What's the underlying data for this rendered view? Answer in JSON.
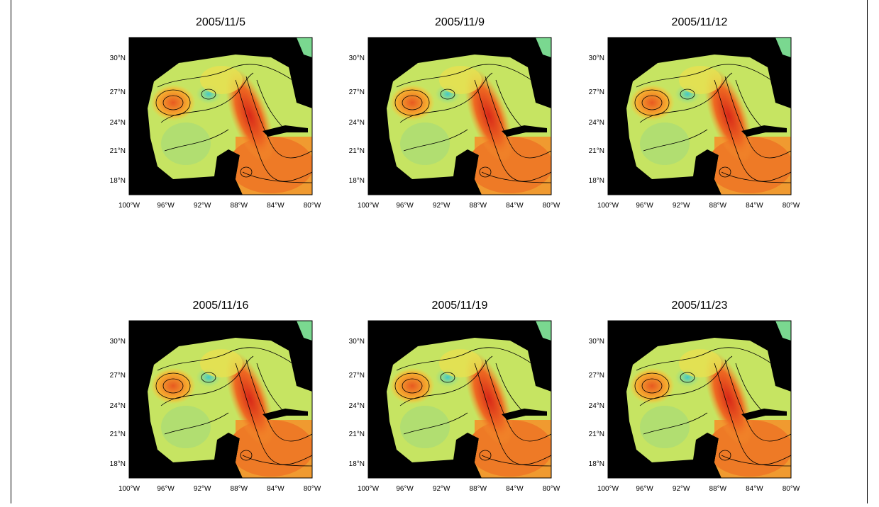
{
  "panels": [
    {
      "title": "2005/11/5",
      "yticks": [
        "30°N",
        "27°N",
        "24°N",
        "21°N",
        "18°N"
      ],
      "xticks": [
        "100°W",
        "96°W",
        "92°W",
        "88°W",
        "84°W",
        "80°W"
      ]
    },
    {
      "title": "2005/11/9",
      "yticks": [
        "30°N",
        "27°N",
        "24°N",
        "21°N",
        "18°N"
      ],
      "xticks": [
        "100°W",
        "96°W",
        "92°W",
        "88°W",
        "84°W",
        "80°W"
      ]
    },
    {
      "title": "2005/11/12",
      "yticks": [
        "30°N",
        "27°N",
        "24°N",
        "21°N",
        "18°N"
      ],
      "xticks": [
        "100°W",
        "96°W",
        "92°W",
        "88°W",
        "84°W",
        "80°W"
      ]
    },
    {
      "title": "2005/11/16",
      "yticks": [
        "30°N",
        "27°N",
        "24°N",
        "21°N",
        "18°N"
      ],
      "xticks": [
        "100°W",
        "96°W",
        "92°W",
        "88°W",
        "84°W",
        "80°W"
      ]
    },
    {
      "title": "2005/11/19",
      "yticks": [
        "30°N",
        "27°N",
        "24°N",
        "21°N",
        "18°N"
      ],
      "xticks": [
        "100°W",
        "96°W",
        "92°W",
        "88°W",
        "84°W",
        "80°W"
      ]
    },
    {
      "title": "2005/11/23",
      "yticks": [
        "30°N",
        "27°N",
        "24°N",
        "21°N",
        "18°N"
      ],
      "xticks": [
        "100°W",
        "96°W",
        "92°W",
        "88°W",
        "84°W",
        "80°W"
      ]
    }
  ]
}
